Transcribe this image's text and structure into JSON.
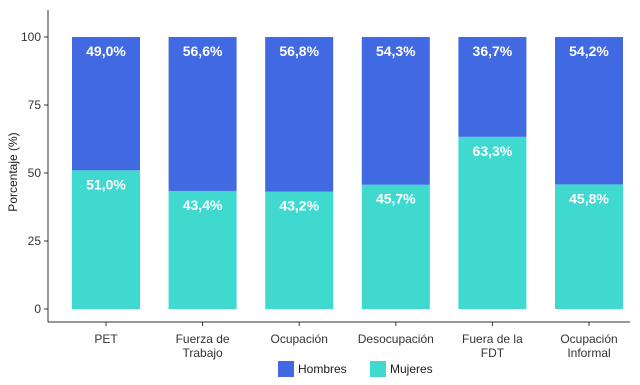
{
  "chart_data": {
    "type": "bar",
    "stacked": true,
    "categories": [
      [
        "PET"
      ],
      [
        "Fuerza de",
        "Trabajo"
      ],
      [
        "Ocupación"
      ],
      [
        "Desocupación"
      ],
      [
        "Fuera de la",
        "FDT"
      ],
      [
        "Ocupación",
        "Informal"
      ]
    ],
    "series": [
      {
        "name": "Mujeres",
        "color": "#40d9d0",
        "values": [
          51.0,
          43.4,
          43.2,
          45.7,
          63.3,
          45.8
        ],
        "labels": [
          "51,0%",
          "43,4%",
          "43,2%",
          "45,7%",
          "63,3%",
          "45,8%"
        ]
      },
      {
        "name": "Hombres",
        "color": "#4169e1",
        "values": [
          49.0,
          56.6,
          56.8,
          54.3,
          36.7,
          54.2
        ],
        "labels": [
          "49,0%",
          "56,6%",
          "56,8%",
          "54,3%",
          "36,7%",
          "54,2%"
        ]
      }
    ],
    "ylabel": "Porcentaje (%)",
    "xlabel": "",
    "ylim": [
      0,
      100
    ],
    "yticks": [
      "0",
      "25",
      "50",
      "75",
      "100"
    ],
    "grid": false,
    "legend": {
      "placement": "bottom",
      "order": [
        "Hombres",
        "Mujeres"
      ]
    }
  }
}
